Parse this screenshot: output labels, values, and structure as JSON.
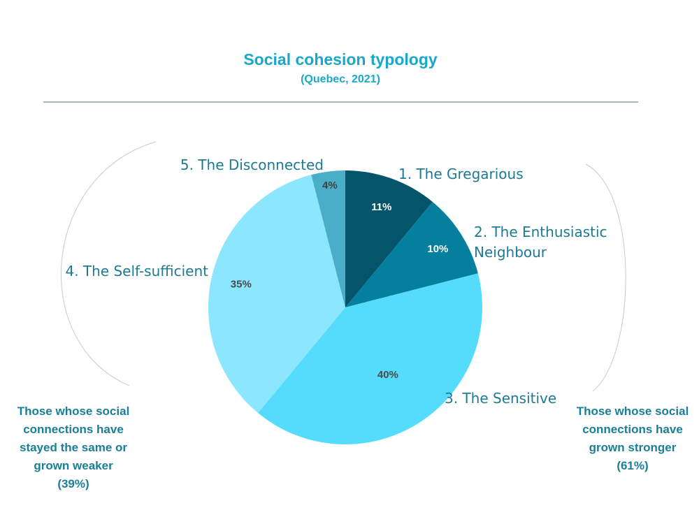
{
  "chart_data": {
    "type": "pie",
    "title": "Social cohesion typology",
    "subtitle": "(Quebec, 2021)",
    "slices": [
      {
        "label": "1. The Gregarious",
        "value": 11,
        "value_label": "11%",
        "color": "#04546b"
      },
      {
        "label": "2. The Enthusiastic Neighbour",
        "label_lines": [
          "2. The Enthusiastic",
          "Neighbour"
        ],
        "value": 10,
        "value_label": "10%",
        "color": "#047f9e"
      },
      {
        "label": "3. The Sensitive",
        "value": 40,
        "value_label": "40%",
        "color": "#55dcfd"
      },
      {
        "label": "4. The Self-sufficient",
        "value": 35,
        "value_label": "35%",
        "color": "#8ce6fd"
      },
      {
        "label": "5. The Disconnected",
        "value": 4,
        "value_label": "4%",
        "color": "#4aaec9"
      }
    ],
    "groups": [
      {
        "text": "Those whose social connections have stayed the same or grown weaker (39%)",
        "lines": [
          "Those whose social",
          "connections have",
          "stayed the same or",
          "grown weaker",
          "(39%)"
        ]
      },
      {
        "text": "Those whose social connections have grown stronger (61%)",
        "lines": [
          "Those whose social",
          "connections have",
          "grown stronger",
          "(61%)"
        ]
      }
    ]
  },
  "colors": {
    "title": "#1aa7c9",
    "labels": "#1e7a93",
    "notes": "#1a7f96",
    "rule": "#8e9fa8"
  }
}
